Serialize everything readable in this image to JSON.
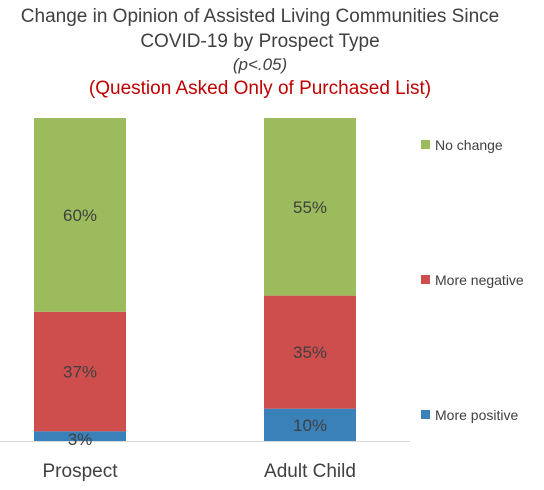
{
  "title": {
    "line1": "Change in Opinion of Assisted Living Communities Since",
    "line2": "COVID-19 by Prospect Type",
    "subtitle": "(p<.05)",
    "note": "(Question Asked Only of Purchased List)"
  },
  "chart_data": {
    "type": "bar",
    "stacked": true,
    "orientation": "vertical",
    "categories": [
      "Prospect",
      "Adult Child"
    ],
    "series": [
      {
        "name": "More positive",
        "values": [
          3,
          10
        ],
        "labels": [
          "3%",
          "10%"
        ],
        "color": "#3a80b9"
      },
      {
        "name": "More negative",
        "values": [
          37,
          35
        ],
        "labels": [
          "37%",
          "35%"
        ],
        "color": "#ce4d4d"
      },
      {
        "name": "No change",
        "values": [
          60,
          55
        ],
        "labels": [
          "60%",
          "55%"
        ],
        "color": "#9bbb5c"
      }
    ],
    "ylim": [
      0,
      100
    ],
    "grid": false,
    "legend_position": "right"
  }
}
